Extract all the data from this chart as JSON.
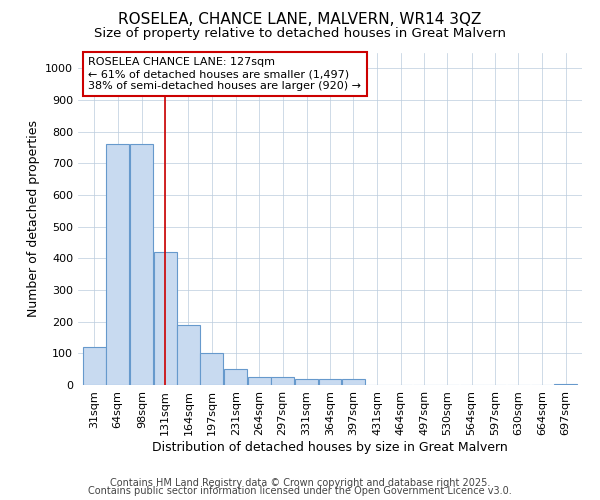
{
  "title": "ROSELEA, CHANCE LANE, MALVERN, WR14 3QZ",
  "subtitle": "Size of property relative to detached houses in Great Malvern",
  "xlabel": "Distribution of detached houses by size in Great Malvern",
  "ylabel": "Number of detached properties",
  "bar_color": "#c8daf0",
  "bar_edge_color": "#6699cc",
  "bar_edge_width": 0.8,
  "grid_color": "#bbccdd",
  "background_color": "#ffffff",
  "plot_bg_color": "#ffffff",
  "annotation_box_color": "#cc0000",
  "vline_color": "#cc0000",
  "vline_x": 131,
  "bin_width": 33,
  "categories": [
    31,
    64,
    98,
    131,
    164,
    197,
    231,
    264,
    297,
    331,
    364,
    397,
    431,
    464,
    497,
    530,
    564,
    597,
    630,
    664,
    697
  ],
  "values": [
    120,
    760,
    760,
    420,
    190,
    100,
    50,
    25,
    25,
    20,
    20,
    20,
    0,
    0,
    0,
    0,
    0,
    0,
    0,
    0,
    3
  ],
  "ylim": [
    0,
    1050
  ],
  "yticks": [
    0,
    100,
    200,
    300,
    400,
    500,
    600,
    700,
    800,
    900,
    1000
  ],
  "annotation_line1": "ROSELEA CHANCE LANE: 127sqm",
  "annotation_line2": "← 61% of detached houses are smaller (1,497)",
  "annotation_line3": "38% of semi-detached houses are larger (920) →",
  "footer_line1": "Contains HM Land Registry data © Crown copyright and database right 2025.",
  "footer_line2": "Contains public sector information licensed under the Open Government Licence v3.0.",
  "title_fontsize": 11,
  "subtitle_fontsize": 9.5,
  "axis_label_fontsize": 9,
  "tick_fontsize": 8,
  "annotation_fontsize": 8,
  "footer_fontsize": 7
}
